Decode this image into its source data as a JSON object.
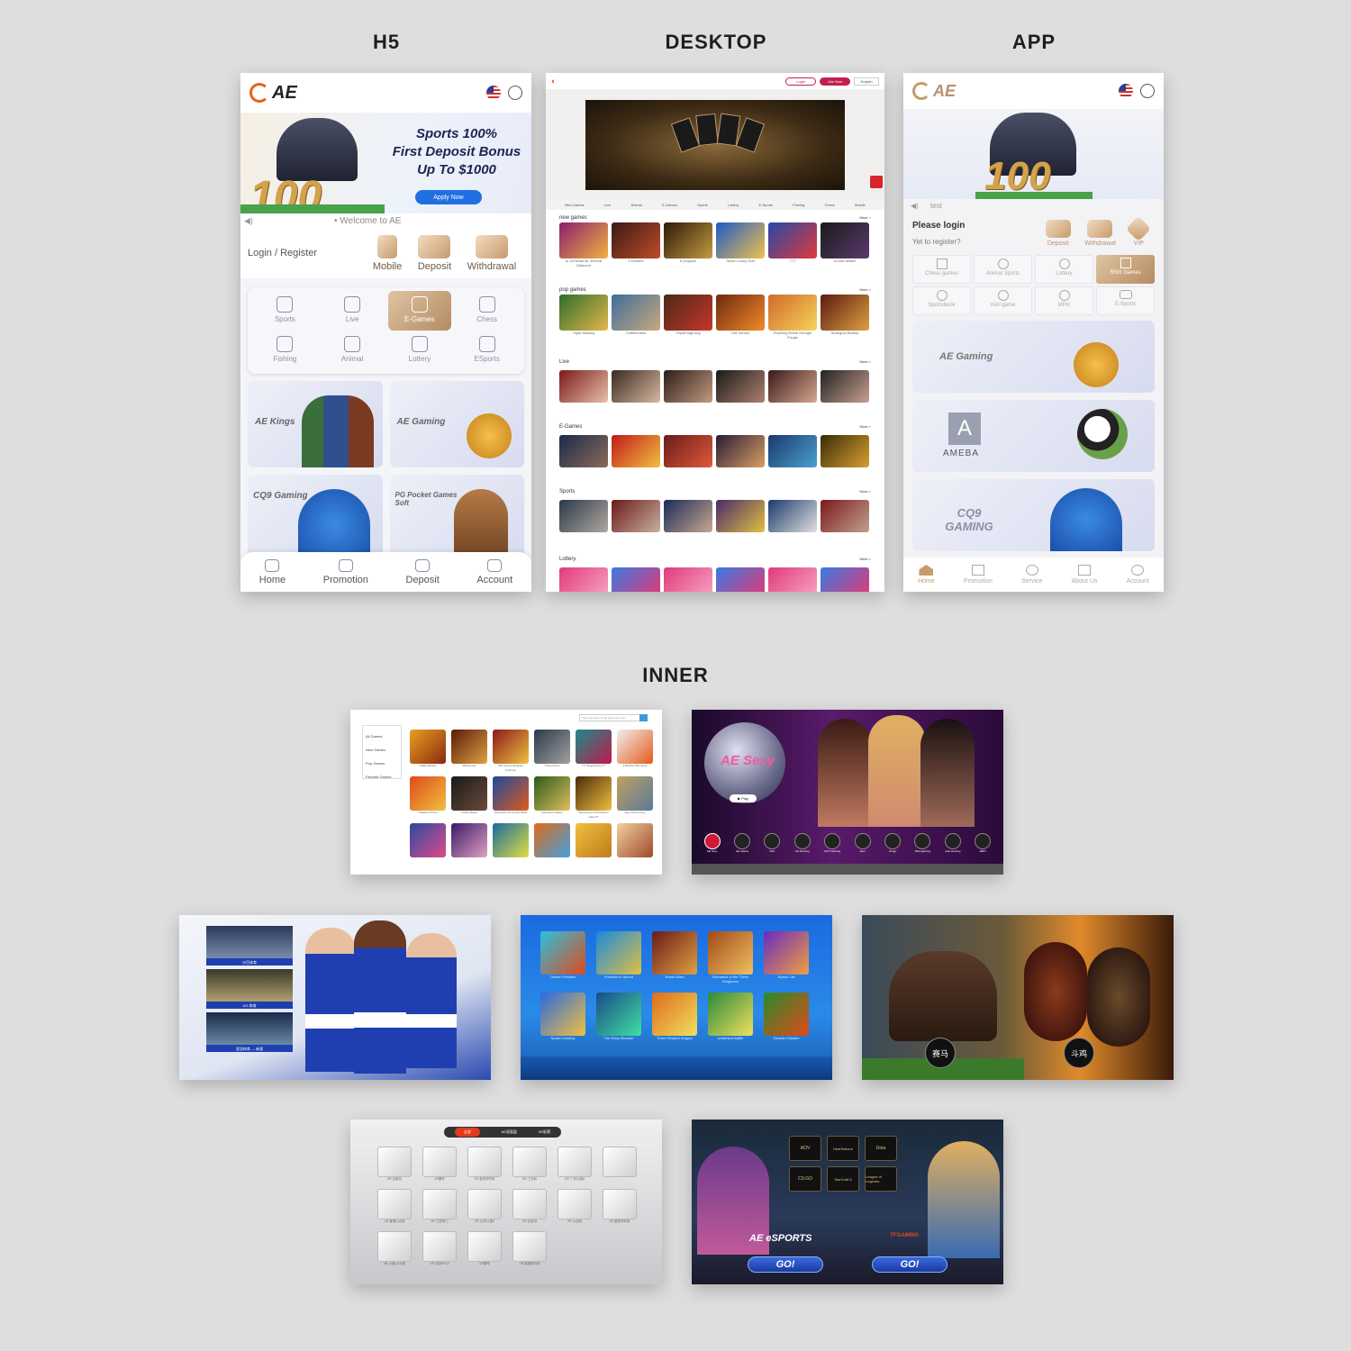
{
  "headings": {
    "h5": "H5",
    "desktop": "DESKTOP",
    "app": "APP",
    "inner": "INNER"
  },
  "colors": {
    "background": "#dedede",
    "brand_orange": "#e8621c",
    "gold": "#c69b6d",
    "accent_blue": "#1f6fe0",
    "login_red": "#c21f4d"
  },
  "h5": {
    "logo": "AE",
    "banner": {
      "line1": "Sports 100%",
      "line2": "First Deposit Bonus",
      "line3": "Up To $1000",
      "big_number": "100",
      "button": "Apply Now"
    },
    "marquee": "• Welcome to AE",
    "login_register": "Login / Register",
    "quick_actions": [
      "Mobile",
      "Deposit",
      "Withdrawal"
    ],
    "categories": [
      "Sports",
      "Live",
      "E-Games",
      "Chess",
      "Fishing",
      "Animal",
      "Lottery",
      "ESports"
    ],
    "active_category": "E-Games",
    "providers": [
      "AE Kings",
      "AE Gaming",
      "CQ9 Gaming",
      "PG Pocket Games Soft"
    ],
    "bottom_nav": [
      "Home",
      "Promotion",
      "Deposit",
      "Account"
    ],
    "icons": [
      "flag-us-icon",
      "chat-icon",
      "speaker-icon",
      "home-icon",
      "gift-icon",
      "wallet-icon",
      "user-icon"
    ]
  },
  "desktop": {
    "header_buttons": {
      "login": "Login",
      "join": "Join Now",
      "language": "English"
    },
    "tabs": [
      "Mini-Games",
      "Live",
      "Animal",
      "E-Games",
      "Sports",
      "Lottery",
      "E-Sports",
      "Fishing",
      "Chess",
      "Mobile"
    ],
    "more_label": "More >",
    "sections": [
      {
        "title": "new games",
        "captions": [
          "Iu JuFuNaiCai -Eternal Diamond",
          "5 Dealers",
          "5 Dragons",
          "Seven Lucky God",
          "777",
          "A Dark Matter"
        ]
      },
      {
        "title": "pop games",
        "captions": [
          "Triple Monkey",
          "CoffeeHolics",
          "TripleKingKong",
          "108 Heroes",
          "Rhyming Reels Georgie Porgie",
          "Shanghai Beauty"
        ]
      },
      {
        "title": "Live",
        "captions": []
      },
      {
        "title": "E-Games",
        "captions": []
      },
      {
        "title": "Sports",
        "captions": []
      },
      {
        "title": "Lottery",
        "captions": []
      }
    ]
  },
  "app": {
    "logo": "AE",
    "banner_number": "100",
    "marquee": "test",
    "please_login": "Please login",
    "yet_to_register": "Yet to register?",
    "quick_actions": [
      "Deposit",
      "Withdrawal",
      "VIP"
    ],
    "categories": [
      "Chess games",
      "Animal Sports",
      "Lottery",
      "RNG Games",
      "Sportsbook",
      "mini game",
      "MPG",
      "E-Sports"
    ],
    "active_category": "RNG Games",
    "providers": [
      "AE Gaming",
      "AMEBA",
      "CQ9 GAMING"
    ],
    "bottom_nav": [
      "Home",
      "Promotion",
      "Service",
      "About Us",
      "Account"
    ]
  },
  "inner": {
    "games_list": {
      "search_placeholder": "Type the name of the game you are l",
      "sidebar": [
        "All Games",
        "New Games",
        "Pop Games",
        "Favorite Games"
      ],
      "row1": [
        "10000 Wishes",
        "108 Heroes",
        "108 Heroes Multiplier Fortunes",
        "5 Reel Drive",
        "777 Mega Deluxe™",
        "9 Blazing Diamonds"
      ],
      "row2": [
        "9 Masks Of Fire",
        "A Dark Matter",
        "ActionOps Snow and Sable",
        "Adventure Palace",
        "Adventures Of Doubloon Island™",
        "Age Of Discovery"
      ],
      "row3": [
        "Blonde",
        "Jane Blonde",
        "Alaskan Fishing",
        "Poseidon",
        "Gold",
        "Girl"
      ]
    },
    "sexy": {
      "logo": "AE Sexy",
      "play": "▶ Play",
      "chips": [
        "AE Sexy",
        "AE Casino",
        "bbin",
        "SA Gaming",
        "EVO Gaming",
        "ebet",
        "Ezugi",
        "Microgaming",
        "Asia Gaming",
        "eBET"
      ]
    },
    "sports": {
      "menu": [
        "沙巴体育",
        "UG 体育",
        "皇冠体育 — 新版"
      ]
    },
    "fishing": {
      "games": [
        "Ocean Princess",
        "Poseidon's Secret",
        "Robot Wars",
        "Romance of the Three Kingdoms",
        "Space Cat",
        "Space Cowboy",
        "The Deep Monster",
        "Three Headed Dragon",
        "Undersea Battle",
        "Zombie Chicken"
      ]
    },
    "animal": {
      "labels": [
        "赛马",
        "斗鸡"
      ]
    },
    "lottery": {
      "tabs": [
        "全部",
        "AE双面盘",
        "VR彩票"
      ],
      "row1": [
        "VR 百家乐",
        "VR赛车",
        "VR 重庆时时彩",
        "VR 三分彩",
        "VR 广东11选5",
        ""
      ],
      "row2": [
        "VR 香港六合彩",
        "VR 江苏快三",
        "VR 山东11选5",
        "VR 北京28",
        "VR 六合彩",
        "VR 重庆时时彩"
      ],
      "row3": [
        "VR 火速1.5分彩",
        "VR 北京PK10",
        "VR赛车",
        "VR 英超时时彩"
      ]
    },
    "esports": {
      "brand": "AE eSPORTS",
      "games": [
        "AOV",
        "Hearthstone",
        "Dota",
        "CS:GO",
        "StarCraft II",
        "League of Legends"
      ],
      "go": "GO!",
      "partner": "TFGAMING"
    }
  }
}
